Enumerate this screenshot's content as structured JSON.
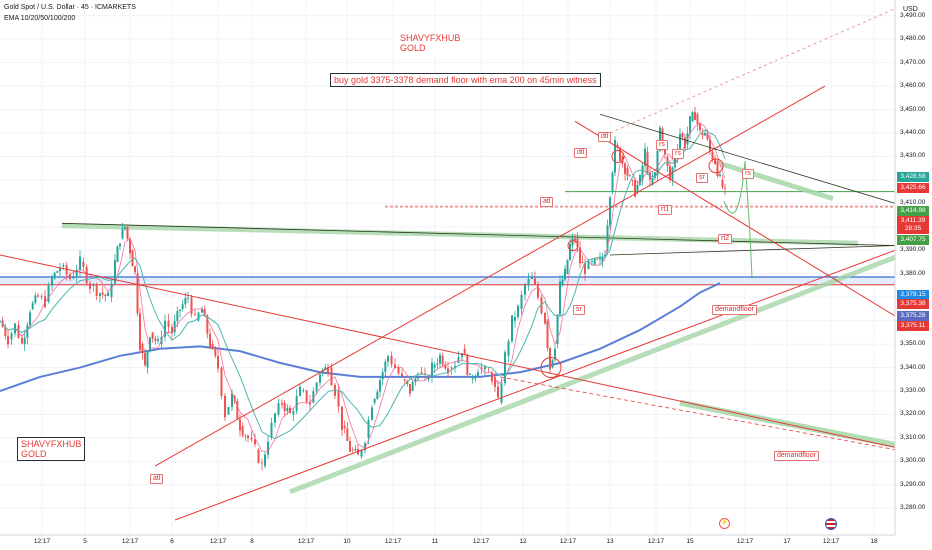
{
  "header": {
    "title": "Gold Spot / U.S. Dollar · 45 · ICMARKETS",
    "indicator": "EMA 10/20/50/100/200"
  },
  "annotations": {
    "brand_top_line1": "SHAVYFXHUB",
    "brand_top_line2": "GOLD",
    "headline": "buy gold 3375-3378 demand floor with ema 200 on 45min  witness",
    "brand_bottom_line1": "SHAVYFXHUB",
    "brand_bottom_line2": "GOLD",
    "tag_dtl_1": "dtl",
    "tag_dtl_2": "dtl",
    "tag_atl_1": "atl",
    "tag_atl_2": "atl",
    "tag_rs_1": "rs",
    "tag_rs_2": "rs",
    "tag_rs_3": "rs",
    "tag_sr_1": "sr",
    "tag_sr_2": "sr",
    "tag_rt1": "rt1",
    "tag_rt2": "rt2",
    "tag_demandfloor_1": "demandfloor",
    "tag_demandfloor_2": "demandfloor"
  },
  "axis": {
    "currency": "USD",
    "y_ticks": [
      "3,490.00",
      "3,480.00",
      "3,470.00",
      "3,460.00",
      "3,450.00",
      "3,440.00",
      "3,430.00",
      "3,420.00",
      "3,410.00",
      "3,400.00",
      "3,390.00",
      "3,380.00",
      "3,370.00",
      "3,360.00",
      "3,350.00",
      "3,340.00",
      "3,330.00",
      "3,320.00",
      "3,310.00",
      "3,300.00",
      "3,290.00",
      "3,280.00"
    ],
    "x_ticks": [
      "12:17",
      "5",
      "12:17",
      "6",
      "12:17",
      "8",
      "12:17",
      "10",
      "12:17",
      "11",
      "12:17",
      "12",
      "12:17",
      "13",
      "12:17",
      "15",
      "12:17",
      "17",
      "12:17",
      "18"
    ]
  },
  "price_badges": [
    {
      "label": "3,428.58",
      "color": "#26a69a"
    },
    {
      "label": "3,425.66",
      "color": "#e53935"
    },
    {
      "label": "3,414.98",
      "color": "#43a047"
    },
    {
      "label": "3,411.39",
      "color": "#e53935"
    },
    {
      "label": "28:35",
      "color": "#e53935"
    },
    {
      "label": "3,407.75",
      "color": "#43a047"
    },
    {
      "label": "3,378.15",
      "color": "#1e88e5"
    },
    {
      "label": "3,375.38",
      "color": "#e53935"
    },
    {
      "label": "3,375.28",
      "color": "#5c6bc0"
    },
    {
      "label": "3,375.11",
      "color": "#e53935"
    }
  ],
  "chart_data": {
    "type": "candlestick",
    "title": "Gold Spot / U.S. Dollar · 45 · ICMARKETS",
    "ylim": [
      3275,
      3495
    ],
    "ylabel": "USD",
    "colors": {
      "up": "#26a69a",
      "down": "#ef5350",
      "ema200": "#5b7fd6",
      "ema_fast": "#f06292",
      "ema_mid": "#4db6ac"
    },
    "path_points": [
      [
        0,
        3360
      ],
      [
        8,
        3352
      ],
      [
        15,
        3358
      ],
      [
        22,
        3350
      ],
      [
        30,
        3365
      ],
      [
        38,
        3370
      ],
      [
        45,
        3368
      ],
      [
        52,
        3378
      ],
      [
        60,
        3383
      ],
      [
        70,
        3378
      ],
      [
        80,
        3385
      ],
      [
        90,
        3375
      ],
      [
        100,
        3372
      ],
      [
        108,
        3370
      ],
      [
        115,
        3385
      ],
      [
        120,
        3395
      ],
      [
        125,
        3400
      ],
      [
        130,
        3390
      ],
      [
        135,
        3380
      ],
      [
        140,
        3350
      ],
      [
        145,
        3340
      ],
      [
        150,
        3355
      ],
      [
        158,
        3350
      ],
      [
        165,
        3360
      ],
      [
        172,
        3355
      ],
      [
        180,
        3365
      ],
      [
        188,
        3370
      ],
      [
        195,
        3360
      ],
      [
        202,
        3365
      ],
      [
        210,
        3350
      ],
      [
        218,
        3340
      ],
      [
        225,
        3320
      ],
      [
        232,
        3328
      ],
      [
        240,
        3315
      ],
      [
        248,
        3310
      ],
      [
        255,
        3305
      ],
      [
        262,
        3298
      ],
      [
        268,
        3310
      ],
      [
        275,
        3320
      ],
      [
        282,
        3325
      ],
      [
        290,
        3320
      ],
      [
        300,
        3330
      ],
      [
        310,
        3325
      ],
      [
        320,
        3338
      ],
      [
        328,
        3340
      ],
      [
        335,
        3330
      ],
      [
        342,
        3315
      ],
      [
        350,
        3305
      ],
      [
        358,
        3302
      ],
      [
        365,
        3310
      ],
      [
        372,
        3325
      ],
      [
        380,
        3335
      ],
      [
        388,
        3345
      ],
      [
        395,
        3340
      ],
      [
        402,
        3335
      ],
      [
        410,
        3330
      ],
      [
        418,
        3338
      ],
      [
        425,
        3335
      ],
      [
        432,
        3340
      ],
      [
        440,
        3345
      ],
      [
        448,
        3340
      ],
      [
        455,
        3342
      ],
      [
        462,
        3348
      ],
      [
        470,
        3335
      ],
      [
        478,
        3340
      ],
      [
        485,
        3338
      ],
      [
        492,
        3336
      ],
      [
        498,
        3325
      ],
      [
        505,
        3345
      ],
      [
        512,
        3360
      ],
      [
        518,
        3365
      ],
      [
        525,
        3375
      ],
      [
        532,
        3378
      ],
      [
        538,
        3370
      ],
      [
        545,
        3360
      ],
      [
        550,
        3340
      ],
      [
        555,
        3350
      ],
      [
        560,
        3375
      ],
      [
        565,
        3380
      ],
      [
        570,
        3392
      ],
      [
        575,
        3395
      ],
      [
        580,
        3385
      ],
      [
        585,
        3382
      ],
      [
        592,
        3384
      ],
      [
        600,
        3385
      ],
      [
        605,
        3390
      ],
      [
        610,
        3415
      ],
      [
        615,
        3435
      ],
      [
        620,
        3430
      ],
      [
        625,
        3425
      ],
      [
        630,
        3420
      ],
      [
        635,
        3415
      ],
      [
        640,
        3420
      ],
      [
        645,
        3432
      ],
      [
        650,
        3418
      ],
      [
        655,
        3422
      ],
      [
        660,
        3442
      ],
      [
        665,
        3430
      ],
      [
        670,
        3420
      ],
      [
        675,
        3430
      ],
      [
        680,
        3440
      ],
      [
        685,
        3435
      ],
      [
        690,
        3445
      ],
      [
        695,
        3448
      ],
      [
        700,
        3440
      ],
      [
        705,
        3440
      ],
      [
        710,
        3432
      ],
      [
        715,
        3428
      ],
      [
        720,
        3420
      ],
      [
        725,
        3414
      ]
    ]
  }
}
